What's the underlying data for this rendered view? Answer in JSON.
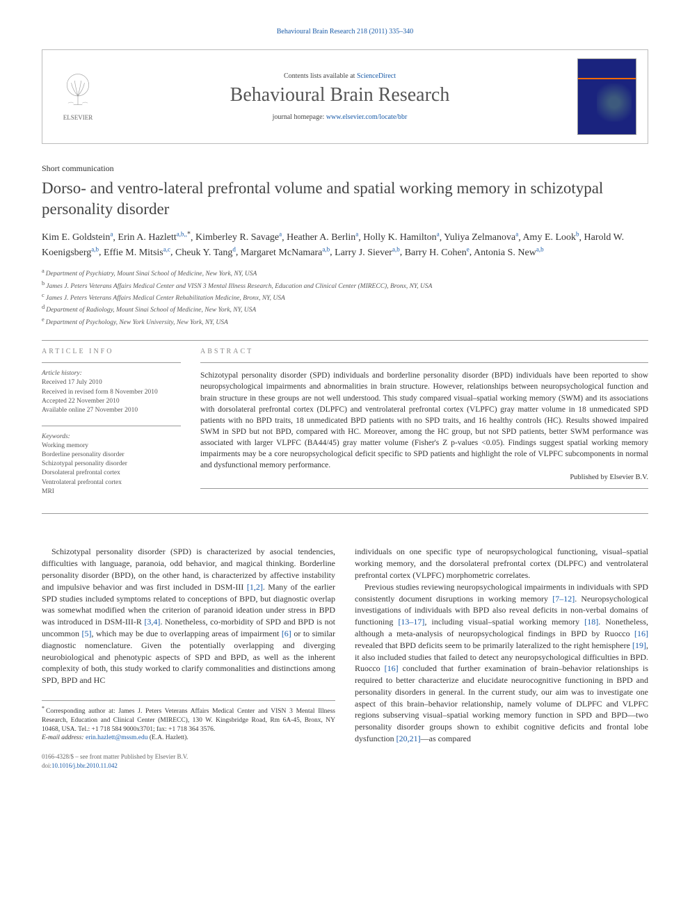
{
  "running_header": {
    "citation": "Behavioural Brain Research 218 (2011) 335–340",
    "link_text": "Behavioural Brain Research"
  },
  "masthead": {
    "publisher": "ELSEVIER",
    "contents_prefix": "Contents lists available at ",
    "contents_link": "ScienceDirect",
    "journal": "Behavioural Brain Research",
    "homepage_prefix": "journal homepage: ",
    "homepage_link": "www.elsevier.com/locate/bbr"
  },
  "article_type": "Short communication",
  "title": "Dorso- and ventro-lateral prefrontal volume and spatial working memory in schizotypal personality disorder",
  "authors_html": "Kim E. Goldstein|a|, Erin A. Hazlett|a,b,*|, Kimberley R. Savage|a|, Heather A. Berlin|a|, Holly K. Hamilton|a|, Yuliya Zelmanova|a|, Amy E. Look|b|, Harold W. Koenigsberg|a,b|, Effie M. Mitsis|a,c|, Cheuk Y. Tang|d|, Margaret McNamara|a,b|, Larry J. Siever|a,b|, Barry H. Cohen|e|, Antonia S. New|a,b|",
  "affiliations": [
    {
      "label": "a",
      "text": "Department of Psychiatry, Mount Sinai School of Medicine, New York, NY, USA"
    },
    {
      "label": "b",
      "text": "James J. Peters Veterans Affairs Medical Center and VISN 3 Mental Illness Research, Education and Clinical Center (MIRECC), Bronx, NY, USA"
    },
    {
      "label": "c",
      "text": "James J. Peters Veterans Affairs Medical Center Rehabilitation Medicine, Bronx, NY, USA"
    },
    {
      "label": "d",
      "text": "Department of Radiology, Mount Sinai School of Medicine, New York, NY, USA"
    },
    {
      "label": "e",
      "text": "Department of Psychology, New York University, New York, NY, USA"
    }
  ],
  "article_info": {
    "head": "ARTICLE INFO",
    "history_label": "Article history:",
    "history": [
      "Received 17 July 2010",
      "Received in revised form 8 November 2010",
      "Accepted 22 November 2010",
      "Available online 27 November 2010"
    ],
    "keywords_label": "Keywords:",
    "keywords": [
      "Working memory",
      "Borderline personality disorder",
      "Schizotypal personality disorder",
      "Dorsolateral prefrontal cortex",
      "Ventrolateral prefrontal cortex",
      "MRI"
    ]
  },
  "abstract": {
    "head": "ABSTRACT",
    "text": "Schizotypal personality disorder (SPD) individuals and borderline personality disorder (BPD) individuals have been reported to show neuropsychological impairments and abnormalities in brain structure. However, relationships between neuropsychological function and brain structure in these groups are not well understood. This study compared visual–spatial working memory (SWM) and its associations with dorsolateral prefrontal cortex (DLPFC) and ventrolateral prefrontal cortex (VLPFC) gray matter volume in 18 unmedicated SPD patients with no BPD traits, 18 unmedicated BPD patients with no SPD traits, and 16 healthy controls (HC). Results showed impaired SWM in SPD but not BPD, compared with HC. Moreover, among the HC group, but not SPD patients, better SWM performance was associated with larger VLPFC (BA44/45) gray matter volume (Fisher's Z p-values <0.05). Findings suggest spatial working memory impairments may be a core neuropsychological deficit specific to SPD patients and highlight the role of VLPFC subcomponents in normal and dysfunctional memory performance.",
    "copyright": "Published by Elsevier B.V."
  },
  "body": {
    "col1": "Schizotypal personality disorder (SPD) is characterized by asocial tendencies, difficulties with language, paranoia, odd behavior, and magical thinking. Borderline personality disorder (BPD), on the other hand, is characterized by affective instability and impulsive behavior and was first included in DSM-III [1,2]. Many of the earlier SPD studies included symptoms related to conceptions of BPD, but diagnostic overlap was somewhat modified when the criterion of paranoid ideation under stress in BPD was introduced in DSM-III-R [3,4]. Nonetheless, co-morbidity of SPD and BPD is not uncommon [5], which may be due to overlapping areas of impairment [6] or to similar diagnostic nomenclature. Given the potentially overlapping and diverging neurobiological and phenotypic aspects of SPD and BPD, as well as the inherent complexity of both, this study worked to clarify commonalities and distinctions among SPD, BPD and HC",
    "col2a": "individuals on one specific type of neuropsychological functioning, visual–spatial working memory, and the dorsolateral prefrontal cortex (DLPFC) and ventrolateral prefrontal cortex (VLPFC) morphometric correlates.",
    "col2b": "Previous studies reviewing neuropsychological impairments in individuals with SPD consistently document disruptions in working memory [7–12]. Neuropsychological investigations of individuals with BPD also reveal deficits in non-verbal domains of functioning [13–17], including visual–spatial working memory [18]. Nonetheless, although a meta-analysis of neuropsychological findings in BPD by Ruocco [16] revealed that BPD deficits seem to be primarily lateralized to the right hemisphere [19], it also included studies that failed to detect any neuropsychological difficulties in BPD. Ruocco [16] concluded that further examination of brain–behavior relationships is required to better characterize and elucidate neurocognitive functioning in BPD and personality disorders in general. In the current study, our aim was to investigate one aspect of this brain–behavior relationship, namely volume of DLPFC and VLPFC regions subserving visual–spatial working memory function in SPD and BPD—two personality disorder groups shown to exhibit cognitive deficits and frontal lobe dysfunction [20,21]—as compared"
  },
  "footnotes": {
    "corresponding": "Corresponding author at: James J. Peters Veterans Affairs Medical Center and VISN 3 Mental Illness Research, Education and Clinical Center (MIRECC), 130 W. Kingsbridge Road, Rm 6A-45, Bronx, NY 10468, USA. Tel.: +1 718 584 9000x3701; fax: +1 718 364 3576.",
    "email_label": "E-mail address:",
    "email": "erin.hazlett@mssm.edu",
    "email_attrib": "(E.A. Hazlett)."
  },
  "doi": {
    "line1": "0166-4328/$ – see front matter Published by Elsevier B.V.",
    "line2_prefix": "doi:",
    "line2_link": "10.1016/j.bbr.2010.11.042"
  },
  "colors": {
    "link": "#1a5ba8",
    "text": "#333333",
    "muted": "#666666",
    "border": "#999999"
  }
}
